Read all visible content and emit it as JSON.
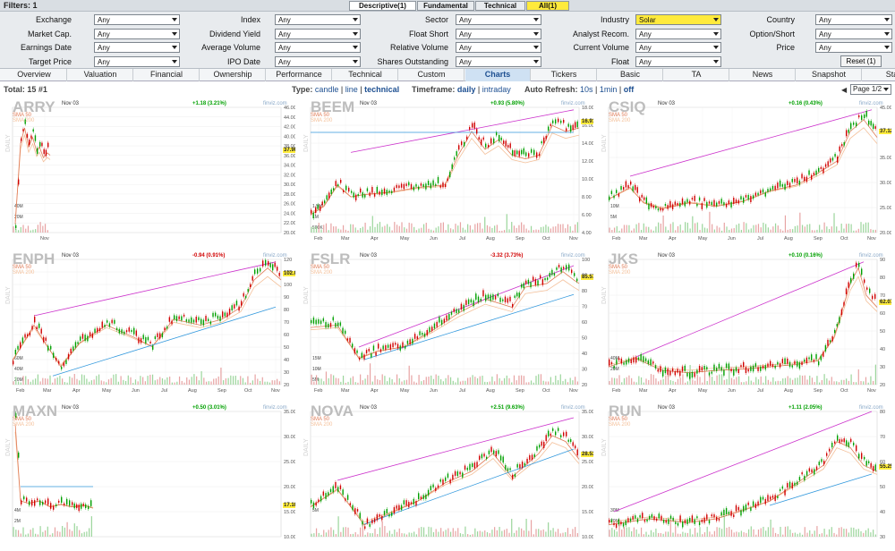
{
  "filters_label": "Filters: 1",
  "filter_tabs": [
    "Descriptive(1)",
    "Fundamental",
    "Technical",
    "All(1)"
  ],
  "filter_rows": [
    [
      {
        "l": "Exchange",
        "v": "Any"
      },
      {
        "l": "Index",
        "v": "Any"
      },
      {
        "l": "Sector",
        "v": "Any"
      },
      {
        "l": "Industry",
        "v": "Solar"
      },
      {
        "l": "Country",
        "v": "Any"
      }
    ],
    [
      {
        "l": "Market Cap.",
        "v": "Any"
      },
      {
        "l": "Dividend Yield",
        "v": "Any"
      },
      {
        "l": "Float Short",
        "v": "Any"
      },
      {
        "l": "Analyst Recom.",
        "v": "Any"
      },
      {
        "l": "Option/Short",
        "v": "Any"
      }
    ],
    [
      {
        "l": "Earnings Date",
        "v": "Any"
      },
      {
        "l": "Average Volume",
        "v": "Any"
      },
      {
        "l": "Relative Volume",
        "v": "Any"
      },
      {
        "l": "Current Volume",
        "v": "Any"
      },
      {
        "l": "Price",
        "v": "Any"
      }
    ],
    [
      {
        "l": "Target Price",
        "v": "Any"
      },
      {
        "l": "IPO Date",
        "v": "Any"
      },
      {
        "l": "Shares Outstanding",
        "v": "Any"
      },
      {
        "l": "Float",
        "v": "Any"
      }
    ]
  ],
  "reset_label": "Reset (1)",
  "view_tabs": [
    "Overview",
    "Valuation",
    "Financial",
    "Ownership",
    "Performance",
    "Technical",
    "Custom",
    "Charts",
    "Tickers",
    "Basic",
    "TA",
    "News",
    "Snapshot",
    "Stats"
  ],
  "active_view": "Charts",
  "total": "Total: 15 #1",
  "type_label": "Type:",
  "type_options": [
    "candle",
    "line",
    "technical"
  ],
  "timeframe_label": "Timeframe:",
  "timeframe_options": [
    "daily",
    "intraday"
  ],
  "refresh_label": "Auto Refresh:",
  "refresh_options": [
    "10s",
    "1min",
    "off"
  ],
  "pager": "Page 1/2",
  "colors": {
    "up": "#00a000",
    "down": "#d00000",
    "trend": "#cc33cc",
    "support": "#3399dd",
    "sma50": "#e07b56",
    "sma200": "#f4c09a",
    "highlight": "#ffea3c"
  },
  "charts": [
    {
      "ticker": "ARRY",
      "date": "Nov 03",
      "change": "+1.18 (3.21%)",
      "dir": "up",
      "price": "37.90",
      "source": "finviz.com",
      "sma50": "SMA 50",
      "sma200": "SMA 200",
      "label": "DAILY",
      "y_ticks": [
        "46.00",
        "44.00",
        "42.00",
        "40.00",
        "38.00",
        "36.00",
        "34.00",
        "32.00",
        "30.00",
        "28.00",
        "26.00",
        "24.00",
        "22.00",
        "20.00"
      ],
      "vol_ticks": [
        "40M",
        "20M"
      ],
      "x_ticks": [
        "Nov"
      ],
      "x_frac": [
        0.12
      ],
      "pts": [
        [
          0.01,
          0.93
        ],
        [
          0.03,
          0.25
        ],
        [
          0.045,
          0.12
        ],
        [
          0.06,
          0.28
        ],
        [
          0.075,
          0.2
        ],
        [
          0.09,
          0.32
        ],
        [
          0.1,
          0.28
        ],
        [
          0.115,
          0.37
        ],
        [
          0.13,
          0.33
        ],
        [
          0.14,
          0.35
        ]
      ],
      "trend": []
    },
    {
      "ticker": "BEEM",
      "date": "Nov 03",
      "change": "+0.93 (5.80%)",
      "dir": "up",
      "price": "16.91",
      "source": "finviz.com",
      "sma50": "SMA 50",
      "sma200": "SMA 200",
      "label": "DAILY",
      "y_ticks": [
        "18.00",
        "16.00",
        "14.00",
        "12.00",
        "10.00",
        "8.00",
        "6.00",
        "4.00"
      ],
      "vol_ticks": [
        "1.5M",
        "1M",
        "500K"
      ],
      "x_ticks": [
        "Feb",
        "Mar",
        "Apr",
        "May",
        "Jun",
        "Jul",
        "Aug",
        "Sep",
        "Oct",
        "Nov"
      ],
      "x_frac": [
        0.03,
        0.13,
        0.24,
        0.35,
        0.46,
        0.57,
        0.67,
        0.78,
        0.88,
        0.98
      ],
      "pts": [
        [
          0.0,
          0.85
        ],
        [
          0.05,
          0.78
        ],
        [
          0.1,
          0.6
        ],
        [
          0.15,
          0.7
        ],
        [
          0.2,
          0.68
        ],
        [
          0.3,
          0.66
        ],
        [
          0.4,
          0.62
        ],
        [
          0.5,
          0.6
        ],
        [
          0.55,
          0.35
        ],
        [
          0.6,
          0.15
        ],
        [
          0.65,
          0.3
        ],
        [
          0.7,
          0.22
        ],
        [
          0.75,
          0.35
        ],
        [
          0.8,
          0.38
        ],
        [
          0.85,
          0.35
        ],
        [
          0.9,
          0.1
        ],
        [
          0.95,
          0.15
        ],
        [
          1.0,
          0.12
        ]
      ],
      "trend": [
        [
          0.15,
          0.36,
          0.98,
          0.02,
          "trend"
        ],
        [
          0.0,
          0.2,
          0.98,
          0.2,
          "support"
        ]
      ]
    },
    {
      "ticker": "CSIQ",
      "date": "Nov 03",
      "change": "+0.16 (0.43%)",
      "dir": "up",
      "price": "37.12",
      "source": "finviz.com",
      "sma50": "SMA 50",
      "sma200": "SMA 200",
      "label": "DAILY",
      "y_ticks": [
        "45.00",
        "40.00",
        "35.00",
        "30.00",
        "25.00",
        "20.00"
      ],
      "vol_ticks": [
        "10M",
        "5M"
      ],
      "x_ticks": [
        "Feb",
        "Mar",
        "Apr",
        "May",
        "Jun",
        "Jul",
        "Aug",
        "Sep",
        "Oct",
        "Nov"
      ],
      "x_frac": [
        0.03,
        0.13,
        0.24,
        0.35,
        0.46,
        0.57,
        0.67,
        0.78,
        0.88,
        0.98
      ],
      "pts": [
        [
          0.0,
          0.72
        ],
        [
          0.08,
          0.62
        ],
        [
          0.13,
          0.75
        ],
        [
          0.2,
          0.8
        ],
        [
          0.3,
          0.75
        ],
        [
          0.4,
          0.78
        ],
        [
          0.5,
          0.74
        ],
        [
          0.6,
          0.65
        ],
        [
          0.7,
          0.6
        ],
        [
          0.78,
          0.5
        ],
        [
          0.85,
          0.4
        ],
        [
          0.9,
          0.15
        ],
        [
          0.95,
          0.05
        ],
        [
          1.0,
          0.2
        ]
      ],
      "trend": [
        [
          0.08,
          0.55,
          0.98,
          0.02,
          "trend"
        ]
      ]
    },
    {
      "ticker": "ENPH",
      "date": "Nov 03",
      "change": "-0.94 (0.91%)",
      "dir": "down",
      "price": "102.05",
      "source": "finviz.com",
      "sma50": "SMA 50",
      "sma200": "SMA 200",
      "label": "DAILY",
      "y_ticks": [
        "120",
        "110",
        "100",
        "90",
        "80",
        "70",
        "60",
        "50",
        "40",
        "30",
        "20"
      ],
      "vol_ticks": [
        "60M",
        "40M",
        "20M"
      ],
      "x_ticks": [
        "Feb",
        "Mar",
        "Apr",
        "May",
        "Jun",
        "Jul",
        "Aug",
        "Sep",
        "Oct",
        "Nov"
      ],
      "x_frac": [
        0.03,
        0.13,
        0.24,
        0.35,
        0.46,
        0.57,
        0.67,
        0.78,
        0.88,
        0.98
      ],
      "pts": [
        [
          0.0,
          0.8
        ],
        [
          0.08,
          0.5
        ],
        [
          0.13,
          0.68
        ],
        [
          0.18,
          0.85
        ],
        [
          0.25,
          0.65
        ],
        [
          0.35,
          0.5
        ],
        [
          0.45,
          0.6
        ],
        [
          0.52,
          0.68
        ],
        [
          0.6,
          0.45
        ],
        [
          0.7,
          0.5
        ],
        [
          0.78,
          0.45
        ],
        [
          0.85,
          0.35
        ],
        [
          0.9,
          0.12
        ],
        [
          0.95,
          0.02
        ],
        [
          1.0,
          0.12
        ]
      ],
      "trend": [
        [
          0.08,
          0.45,
          0.98,
          0.02,
          "trend"
        ],
        [
          0.15,
          0.93,
          0.98,
          0.38,
          "support"
        ]
      ]
    },
    {
      "ticker": "FSLR",
      "date": "Nov 03",
      "change": "-3.32 (3.73%)",
      "dir": "down",
      "price": "85.57",
      "source": "finviz.com",
      "sma50": "SMA 50",
      "sma200": "SMA 200",
      "label": "DAILY",
      "y_ticks": [
        "100",
        "90",
        "80",
        "70",
        "60",
        "50",
        "40",
        "30",
        "20"
      ],
      "vol_ticks": [
        "15M",
        "10M",
        "5M"
      ],
      "x_ticks": [
        "Feb",
        "Mar",
        "Apr",
        "May",
        "Jun",
        "Jul",
        "Aug",
        "Sep",
        "Oct",
        "Nov"
      ],
      "x_frac": [
        0.03,
        0.13,
        0.24,
        0.35,
        0.46,
        0.57,
        0.67,
        0.78,
        0.88,
        0.98
      ],
      "pts": [
        [
          0.0,
          0.52
        ],
        [
          0.1,
          0.5
        ],
        [
          0.18,
          0.78
        ],
        [
          0.25,
          0.72
        ],
        [
          0.35,
          0.68
        ],
        [
          0.45,
          0.55
        ],
        [
          0.55,
          0.4
        ],
        [
          0.65,
          0.28
        ],
        [
          0.75,
          0.35
        ],
        [
          0.8,
          0.18
        ],
        [
          0.88,
          0.15
        ],
        [
          0.94,
          0.05
        ],
        [
          0.98,
          0.12
        ],
        [
          1.0,
          0.15
        ]
      ],
      "trend": [
        [
          0.18,
          0.7,
          0.98,
          0.05,
          "trend"
        ],
        [
          0.2,
          0.8,
          0.98,
          0.28,
          "support"
        ]
      ]
    },
    {
      "ticker": "JKS",
      "date": "Nov 03",
      "change": "+0.10 (0.16%)",
      "dir": "up",
      "price": "62.07",
      "source": "finviz.com",
      "sma50": "SMA 50",
      "sma200": "SMA 200",
      "label": "DAILY",
      "y_ticks": [
        "90",
        "80",
        "70",
        "60",
        "50",
        "40",
        "30",
        "20"
      ],
      "vol_ticks": [
        "40M",
        "20M"
      ],
      "x_ticks": [
        "Feb",
        "Mar",
        "Apr",
        "May",
        "Jun",
        "Jul",
        "Aug",
        "Sep",
        "Oct",
        "Nov"
      ],
      "x_frac": [
        0.03,
        0.13,
        0.24,
        0.35,
        0.46,
        0.57,
        0.67,
        0.78,
        0.88,
        0.98
      ],
      "pts": [
        [
          0.0,
          0.85
        ],
        [
          0.1,
          0.78
        ],
        [
          0.2,
          0.88
        ],
        [
          0.3,
          0.9
        ],
        [
          0.4,
          0.88
        ],
        [
          0.5,
          0.87
        ],
        [
          0.6,
          0.85
        ],
        [
          0.7,
          0.83
        ],
        [
          0.78,
          0.8
        ],
        [
          0.84,
          0.6
        ],
        [
          0.9,
          0.15
        ],
        [
          0.93,
          0.02
        ],
        [
          0.96,
          0.25
        ],
        [
          1.0,
          0.35
        ]
      ],
      "trend": [
        [
          0.1,
          0.78,
          0.95,
          0.02,
          "trend"
        ]
      ]
    },
    {
      "ticker": "MAXN",
      "date": "Nov 03",
      "change": "+0.50 (3.01%)",
      "dir": "up",
      "price": "17.10",
      "source": "finviz.com",
      "sma50": "SMA 50",
      "sma200": "SMA 200",
      "label": "DAILY",
      "y_ticks": [
        "35.00",
        "30.00",
        "25.00",
        "20.00",
        "15.00",
        "10.00"
      ],
      "vol_ticks": [
        "4M",
        "2M"
      ],
      "x_ticks": [],
      "x_frac": [],
      "pts": [
        [
          0.01,
          0.05
        ],
        [
          0.03,
          0.7
        ],
        [
          0.06,
          0.72
        ],
        [
          0.1,
          0.7
        ],
        [
          0.14,
          0.75
        ],
        [
          0.18,
          0.73
        ],
        [
          0.22,
          0.75
        ],
        [
          0.27,
          0.74
        ],
        [
          0.3,
          0.76
        ]
      ],
      "trend": [
        [
          0.03,
          0.6,
          0.3,
          0.6,
          "support"
        ]
      ]
    },
    {
      "ticker": "NOVA",
      "date": "Nov 03",
      "change": "+2.51 (9.63%)",
      "dir": "up",
      "price": "28.53",
      "source": "finviz.com",
      "sma50": "SMA 50",
      "sma200": "SMA 200",
      "label": "DAILY",
      "y_ticks": [
        "35.00",
        "30.00",
        "25.00",
        "20.00",
        "15.00",
        "10.00"
      ],
      "vol_ticks": [
        "5M"
      ],
      "x_ticks": [],
      "x_frac": [],
      "pts": [
        [
          0.0,
          0.75
        ],
        [
          0.1,
          0.6
        ],
        [
          0.2,
          0.9
        ],
        [
          0.3,
          0.8
        ],
        [
          0.4,
          0.7
        ],
        [
          0.5,
          0.55
        ],
        [
          0.6,
          0.45
        ],
        [
          0.68,
          0.3
        ],
        [
          0.75,
          0.5
        ],
        [
          0.85,
          0.3
        ],
        [
          0.9,
          0.15
        ],
        [
          0.95,
          0.2
        ],
        [
          1.0,
          0.35
        ]
      ],
      "trend": [
        [
          0.1,
          0.55,
          0.98,
          0.05,
          "trend"
        ],
        [
          0.2,
          0.9,
          0.98,
          0.3,
          "support"
        ]
      ]
    },
    {
      "ticker": "RUN",
      "date": "Nov 03",
      "change": "+1.11 (2.05%)",
      "dir": "up",
      "price": "55.25",
      "source": "finviz.com",
      "sma50": "SMA 50",
      "sma200": "SMA 200",
      "label": "DAILY",
      "y_ticks": [
        "80",
        "70",
        "60",
        "50",
        "40",
        "30"
      ],
      "vol_ticks": [
        "30M",
        "20M"
      ],
      "x_ticks": [],
      "x_frac": [],
      "pts": [
        [
          0.0,
          0.9
        ],
        [
          0.15,
          0.85
        ],
        [
          0.3,
          0.88
        ],
        [
          0.4,
          0.85
        ],
        [
          0.5,
          0.78
        ],
        [
          0.6,
          0.7
        ],
        [
          0.7,
          0.55
        ],
        [
          0.8,
          0.4
        ],
        [
          0.85,
          0.2
        ],
        [
          0.9,
          0.25
        ],
        [
          0.95,
          0.4
        ],
        [
          1.0,
          0.45
        ]
      ],
      "trend": [
        [
          0.02,
          0.8,
          0.98,
          0.0,
          "trend"
        ],
        [
          0.6,
          0.75,
          0.98,
          0.5,
          "support"
        ]
      ]
    }
  ]
}
